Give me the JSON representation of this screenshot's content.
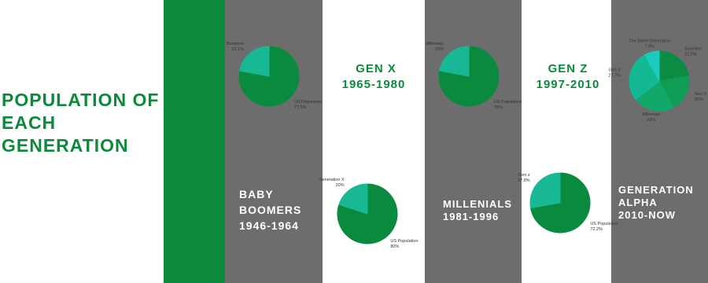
{
  "title_lines": [
    "POPULATION OF",
    "EACH",
    "GENERATION"
  ],
  "columns": [
    {
      "lines": [
        "BABY",
        "BOOMERS",
        "1946-1964"
      ]
    },
    {
      "lines": [
        "GEN X",
        "1965-1980"
      ]
    },
    {
      "lines": [
        "MILLENIALS",
        "1981-1996"
      ]
    },
    {
      "lines": [
        "GEN Z",
        "1997-2010"
      ]
    },
    {
      "lines": [
        "GENERATION",
        "ALPHA",
        "2010-NOW"
      ]
    }
  ],
  "chart_data": [
    {
      "type": "pie",
      "categories": [
        "US Population",
        "Boomers"
      ],
      "values": [
        77.9,
        22.1
      ],
      "value_labels": [
        "77.9%",
        "22.1%"
      ],
      "colors": [
        "#0a8a3e",
        "#19b895"
      ]
    },
    {
      "type": "pie",
      "categories": [
        "US Population",
        "Generation X"
      ],
      "values": [
        80,
        20
      ],
      "value_labels": [
        "80%",
        "20%"
      ],
      "colors": [
        "#0a8a3e",
        "#19b895"
      ]
    },
    {
      "type": "pie",
      "categories": [
        "US Population",
        "Millenials"
      ],
      "values": [
        78,
        22
      ],
      "value_labels": [
        "78%",
        "22%"
      ],
      "colors": [
        "#0a8a3e",
        "#19b895"
      ]
    },
    {
      "type": "pie",
      "categories": [
        "US Population",
        "Gen z"
      ],
      "values": [
        72.2,
        27.8
      ],
      "value_labels": [
        "72.2%",
        "27.8%"
      ],
      "colors": [
        "#0a8a3e",
        "#19b895"
      ]
    },
    {
      "type": "pie",
      "categories": [
        "Boomers",
        "Gen X",
        "Millenials",
        "Gen Z",
        "The Silent Generation"
      ],
      "values": [
        22.2,
        20,
        22,
        27.7,
        7.9
      ],
      "value_labels": [
        "22.2%",
        "20%",
        "22%",
        "27.7%",
        "7.9%"
      ],
      "colors": [
        "#0c8c42",
        "#0f9c55",
        "#12a86a",
        "#15b894",
        "#1ccbc0"
      ]
    }
  ]
}
